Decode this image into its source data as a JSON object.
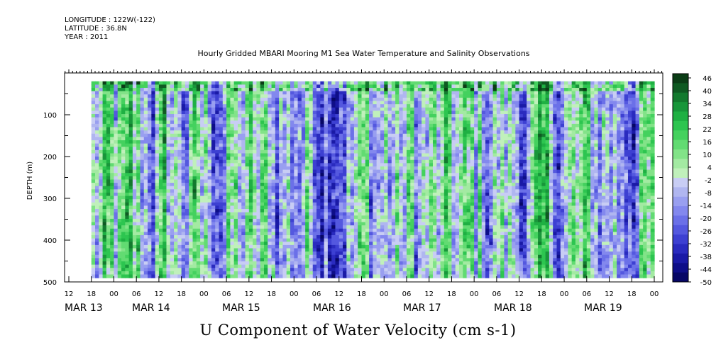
{
  "header": {
    "longitude": "LONGITUDE : 122W(-122)",
    "latitude": "LATITUDE : 36.8N",
    "year": "YEAR : 2011"
  },
  "chart_data": {
    "type": "heatmap",
    "title": "Hourly Gridded MBARI Mooring M1 Sea Water Temperature and Salinity Observations",
    "xlabel": "U Component of Water Velocity (cm s-1)",
    "ylabel": "DEPTH (m)",
    "ylim": [
      500,
      0
    ],
    "yticks": [
      "100",
      "200",
      "300",
      "400",
      "500"
    ],
    "y_values": [
      100,
      200,
      300,
      400,
      500
    ],
    "x_hour_ticks": [
      "12",
      "18",
      "00",
      "06",
      "12",
      "18",
      "00",
      "06",
      "12",
      "18",
      "00",
      "06",
      "12",
      "18",
      "00",
      "06",
      "12",
      "18",
      "00",
      "06",
      "12",
      "18",
      "00",
      "06",
      "12",
      "18",
      "00"
    ],
    "x_day_labels": [
      "MAR 13",
      "MAR 14",
      "MAR 15",
      "MAR 16",
      "MAR 17",
      "MAR 18",
      "MAR 19"
    ],
    "data_range": {
      "x_start": "MAR 13 18:00",
      "x_end": "MAR 20 00:00",
      "depth_top": 20,
      "depth_bottom": 490
    },
    "colorbar": {
      "labels": [
        "46",
        "40",
        "34",
        "28",
        "22",
        "16",
        "10",
        "4",
        "-2",
        "-8",
        "-14",
        "-20",
        "-26",
        "-32",
        "-38",
        "-44",
        "-50"
      ],
      "min": -50,
      "max": 48,
      "colors_top_to_bottom": [
        "#0b3d16",
        "#0f5a22",
        "#137a2e",
        "#18963a",
        "#1fb043",
        "#2dc550",
        "#44d15e",
        "#62db72",
        "#82e388",
        "#a3eaa2",
        "#c0f0bb",
        "#c8cdf4",
        "#b0b6f0",
        "#999ff0",
        "#8388ee",
        "#6b70e8",
        "#5458df",
        "#3d40d2",
        "#2a2bbf",
        "#1a1aa6",
        "#0e0e88",
        "#070766"
      ]
    },
    "grid": false
  }
}
